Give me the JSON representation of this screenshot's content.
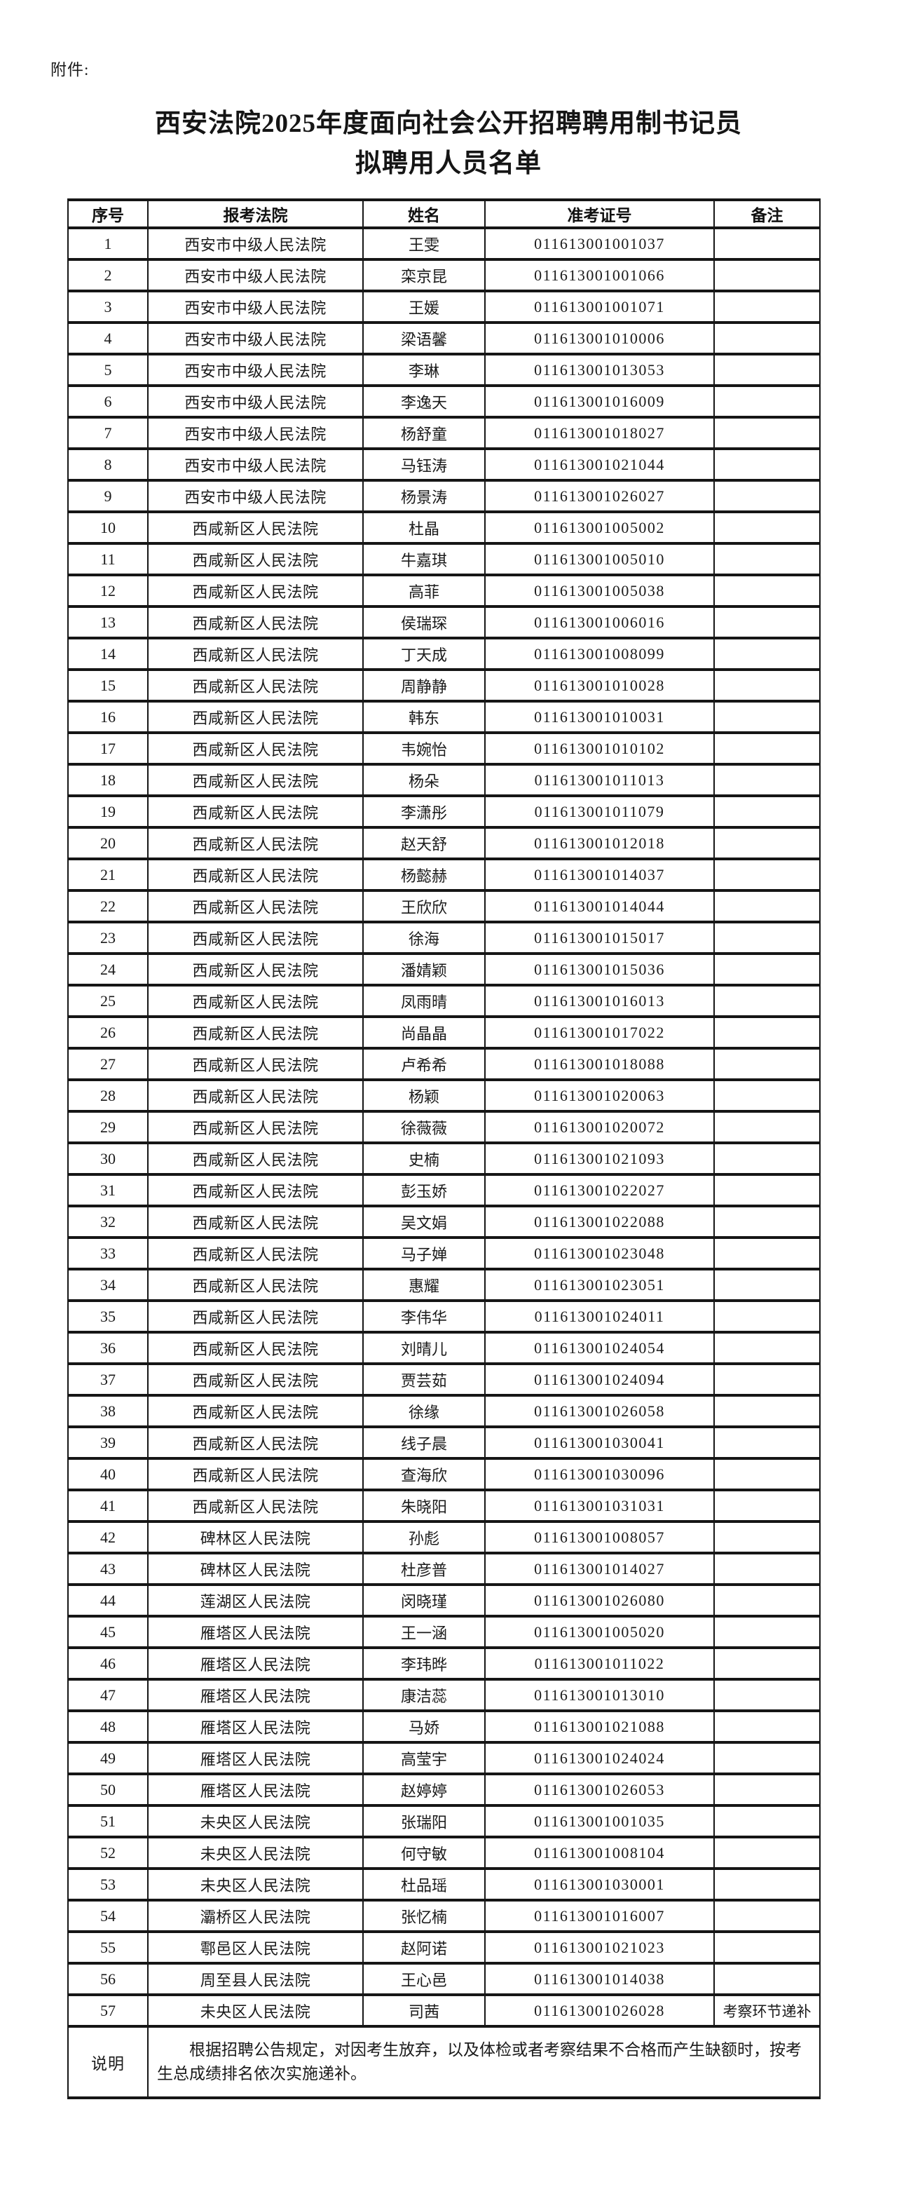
{
  "page": {
    "attachment_label": "附件:",
    "title_line1": "西安法院2025年度面向社会公开招聘聘用制书记员",
    "title_line2": "拟聘用人员名单"
  },
  "table": {
    "headers": [
      "序号",
      "报考法院",
      "姓名",
      "准考证号",
      "备注"
    ],
    "rows": [
      {
        "no": "1",
        "court": "西安市中级人民法院",
        "name": "王雯",
        "ticket": "011613001001037",
        "remark": ""
      },
      {
        "no": "2",
        "court": "西安市中级人民法院",
        "name": "栾京昆",
        "ticket": "011613001001066",
        "remark": ""
      },
      {
        "no": "3",
        "court": "西安市中级人民法院",
        "name": "王媛",
        "ticket": "011613001001071",
        "remark": ""
      },
      {
        "no": "4",
        "court": "西安市中级人民法院",
        "name": "梁语馨",
        "ticket": "011613001010006",
        "remark": ""
      },
      {
        "no": "5",
        "court": "西安市中级人民法院",
        "name": "李琳",
        "ticket": "011613001013053",
        "remark": ""
      },
      {
        "no": "6",
        "court": "西安市中级人民法院",
        "name": "李逸天",
        "ticket": "011613001016009",
        "remark": ""
      },
      {
        "no": "7",
        "court": "西安市中级人民法院",
        "name": "杨舒童",
        "ticket": "011613001018027",
        "remark": ""
      },
      {
        "no": "8",
        "court": "西安市中级人民法院",
        "name": "马钰涛",
        "ticket": "011613001021044",
        "remark": ""
      },
      {
        "no": "9",
        "court": "西安市中级人民法院",
        "name": "杨景涛",
        "ticket": "011613001026027",
        "remark": ""
      },
      {
        "no": "10",
        "court": "西咸新区人民法院",
        "name": "杜晶",
        "ticket": "011613001005002",
        "remark": ""
      },
      {
        "no": "11",
        "court": "西咸新区人民法院",
        "name": "牛嘉琪",
        "ticket": "011613001005010",
        "remark": ""
      },
      {
        "no": "12",
        "court": "西咸新区人民法院",
        "name": "高菲",
        "ticket": "011613001005038",
        "remark": ""
      },
      {
        "no": "13",
        "court": "西咸新区人民法院",
        "name": "侯瑞琛",
        "ticket": "011613001006016",
        "remark": ""
      },
      {
        "no": "14",
        "court": "西咸新区人民法院",
        "name": "丁天成",
        "ticket": "011613001008099",
        "remark": ""
      },
      {
        "no": "15",
        "court": "西咸新区人民法院",
        "name": "周静静",
        "ticket": "011613001010028",
        "remark": ""
      },
      {
        "no": "16",
        "court": "西咸新区人民法院",
        "name": "韩东",
        "ticket": "011613001010031",
        "remark": ""
      },
      {
        "no": "17",
        "court": "西咸新区人民法院",
        "name": "韦婉怡",
        "ticket": "011613001010102",
        "remark": ""
      },
      {
        "no": "18",
        "court": "西咸新区人民法院",
        "name": "杨朵",
        "ticket": "011613001011013",
        "remark": ""
      },
      {
        "no": "19",
        "court": "西咸新区人民法院",
        "name": "李潇彤",
        "ticket": "011613001011079",
        "remark": ""
      },
      {
        "no": "20",
        "court": "西咸新区人民法院",
        "name": "赵天舒",
        "ticket": "011613001012018",
        "remark": ""
      },
      {
        "no": "21",
        "court": "西咸新区人民法院",
        "name": "杨懿赫",
        "ticket": "011613001014037",
        "remark": ""
      },
      {
        "no": "22",
        "court": "西咸新区人民法院",
        "name": "王欣欣",
        "ticket": "011613001014044",
        "remark": ""
      },
      {
        "no": "23",
        "court": "西咸新区人民法院",
        "name": "徐海",
        "ticket": "011613001015017",
        "remark": ""
      },
      {
        "no": "24",
        "court": "西咸新区人民法院",
        "name": "潘婧颖",
        "ticket": "011613001015036",
        "remark": ""
      },
      {
        "no": "25",
        "court": "西咸新区人民法院",
        "name": "凤雨晴",
        "ticket": "011613001016013",
        "remark": ""
      },
      {
        "no": "26",
        "court": "西咸新区人民法院",
        "name": "尚晶晶",
        "ticket": "011613001017022",
        "remark": ""
      },
      {
        "no": "27",
        "court": "西咸新区人民法院",
        "name": "卢希希",
        "ticket": "011613001018088",
        "remark": ""
      },
      {
        "no": "28",
        "court": "西咸新区人民法院",
        "name": "杨颖",
        "ticket": "011613001020063",
        "remark": ""
      },
      {
        "no": "29",
        "court": "西咸新区人民法院",
        "name": "徐薇薇",
        "ticket": "011613001020072",
        "remark": ""
      },
      {
        "no": "30",
        "court": "西咸新区人民法院",
        "name": "史楠",
        "ticket": "011613001021093",
        "remark": ""
      },
      {
        "no": "31",
        "court": "西咸新区人民法院",
        "name": "彭玉娇",
        "ticket": "011613001022027",
        "remark": ""
      },
      {
        "no": "32",
        "court": "西咸新区人民法院",
        "name": "吴文娟",
        "ticket": "011613001022088",
        "remark": ""
      },
      {
        "no": "33",
        "court": "西咸新区人民法院",
        "name": "马子婵",
        "ticket": "011613001023048",
        "remark": ""
      },
      {
        "no": "34",
        "court": "西咸新区人民法院",
        "name": "惠耀",
        "ticket": "011613001023051",
        "remark": ""
      },
      {
        "no": "35",
        "court": "西咸新区人民法院",
        "name": "李伟华",
        "ticket": "011613001024011",
        "remark": ""
      },
      {
        "no": "36",
        "court": "西咸新区人民法院",
        "name": "刘晴儿",
        "ticket": "011613001024054",
        "remark": ""
      },
      {
        "no": "37",
        "court": "西咸新区人民法院",
        "name": "贾芸茹",
        "ticket": "011613001024094",
        "remark": ""
      },
      {
        "no": "38",
        "court": "西咸新区人民法院",
        "name": "徐缘",
        "ticket": "011613001026058",
        "remark": ""
      },
      {
        "no": "39",
        "court": "西咸新区人民法院",
        "name": "线子晨",
        "ticket": "011613001030041",
        "remark": ""
      },
      {
        "no": "40",
        "court": "西咸新区人民法院",
        "name": "查海欣",
        "ticket": "011613001030096",
        "remark": ""
      },
      {
        "no": "41",
        "court": "西咸新区人民法院",
        "name": "朱晓阳",
        "ticket": "011613001031031",
        "remark": ""
      },
      {
        "no": "42",
        "court": "碑林区人民法院",
        "name": "孙彪",
        "ticket": "011613001008057",
        "remark": ""
      },
      {
        "no": "43",
        "court": "碑林区人民法院",
        "name": "杜彦普",
        "ticket": "011613001014027",
        "remark": ""
      },
      {
        "no": "44",
        "court": "莲湖区人民法院",
        "name": "闵晓瑾",
        "ticket": "011613001026080",
        "remark": ""
      },
      {
        "no": "45",
        "court": "雁塔区人民法院",
        "name": "王一涵",
        "ticket": "011613001005020",
        "remark": ""
      },
      {
        "no": "46",
        "court": "雁塔区人民法院",
        "name": "李玮晔",
        "ticket": "011613001011022",
        "remark": ""
      },
      {
        "no": "47",
        "court": "雁塔区人民法院",
        "name": "康洁蕊",
        "ticket": "011613001013010",
        "remark": ""
      },
      {
        "no": "48",
        "court": "雁塔区人民法院",
        "name": "马娇",
        "ticket": "011613001021088",
        "remark": ""
      },
      {
        "no": "49",
        "court": "雁塔区人民法院",
        "name": "高莹宇",
        "ticket": "011613001024024",
        "remark": ""
      },
      {
        "no": "50",
        "court": "雁塔区人民法院",
        "name": "赵婷婷",
        "ticket": "011613001026053",
        "remark": ""
      },
      {
        "no": "51",
        "court": "未央区人民法院",
        "name": "张瑞阳",
        "ticket": "011613001001035",
        "remark": ""
      },
      {
        "no": "52",
        "court": "未央区人民法院",
        "name": "何守敏",
        "ticket": "011613001008104",
        "remark": ""
      },
      {
        "no": "53",
        "court": "未央区人民法院",
        "name": "杜品瑶",
        "ticket": "011613001030001",
        "remark": ""
      },
      {
        "no": "54",
        "court": "灞桥区人民法院",
        "name": "张忆楠",
        "ticket": "011613001016007",
        "remark": ""
      },
      {
        "no": "55",
        "court": "鄠邑区人民法院",
        "name": "赵阿诺",
        "ticket": "011613001021023",
        "remark": ""
      },
      {
        "no": "56",
        "court": "周至县人民法院",
        "name": "王心邑",
        "ticket": "011613001014038",
        "remark": ""
      },
      {
        "no": "57",
        "court": "未央区人民法院",
        "name": "司茜",
        "ticket": "011613001026028",
        "remark": "考察环节递补"
      }
    ],
    "note_label": "说明",
    "note_text": "根据招聘公告规定，对因考生放弃，以及体检或者考察结果不合格而产生缺额时，按考生总成绩排名依次实施递补。"
  }
}
